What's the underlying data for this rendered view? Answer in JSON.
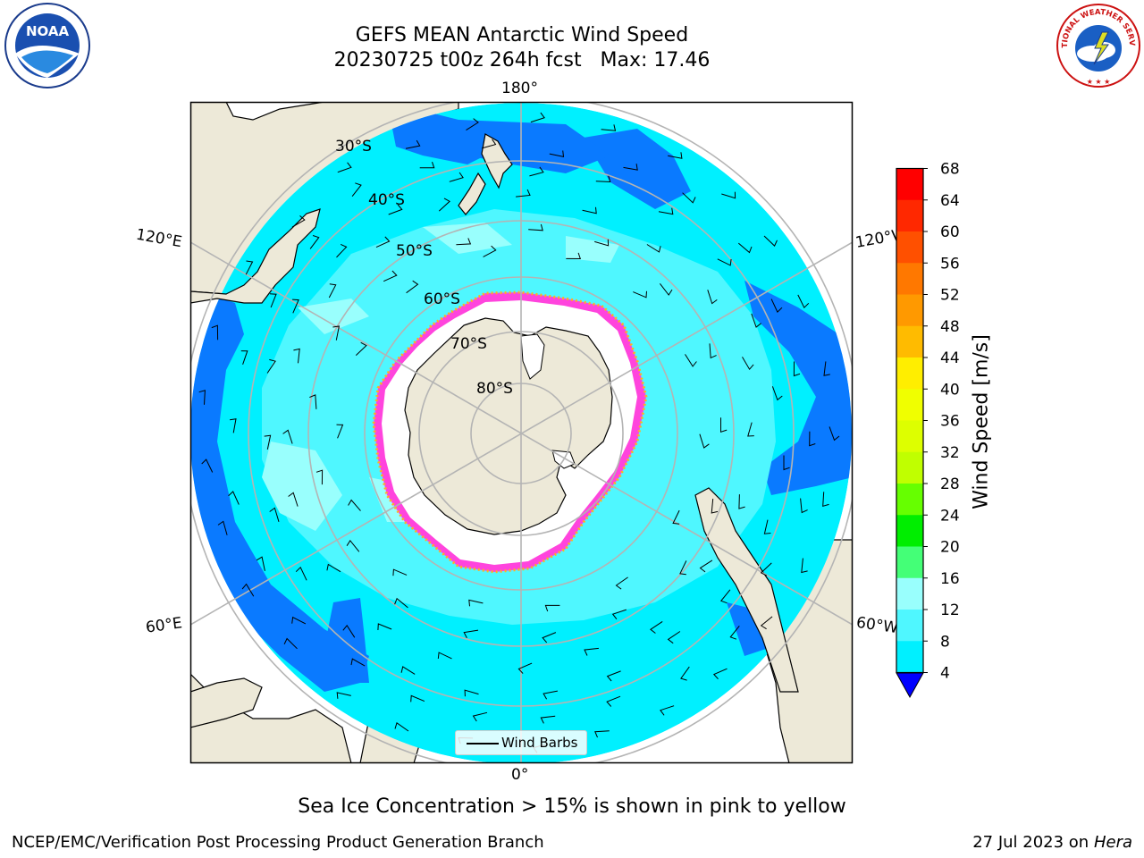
{
  "header": {
    "title_line1": "GEFS MEAN Antarctic Wind Speed",
    "title_line2": "20230725 t00z 264h fcst   Max: 17.46"
  },
  "logos": {
    "noaa": {
      "text": "NOAA",
      "ring_text": "NATIONAL OCEANIC AND ATMOSPHERIC ADMINISTRATION · U.S. DEPARTMENT OF COMMERCE",
      "icon": "noaa-logo"
    },
    "nws": {
      "ring_text": "NATIONAL WEATHER SERVICE",
      "icon": "nws-logo"
    }
  },
  "map": {
    "projection": "south-polar-stereographic",
    "lon_labels": {
      "top": "180°",
      "bottom": "0°",
      "upper_left": "120°E",
      "lower_left": "60°E",
      "upper_right": "120°W",
      "lower_right": "60°W"
    },
    "lat_labels": [
      "30°S",
      "40°S",
      "50°S",
      "60°S",
      "70°S",
      "80°S"
    ],
    "colors": {
      "land": "#ede9d8",
      "ocean_4_8": "#0a7aff",
      "ocean_8_12": "#00f0ff",
      "ocean_12_16": "#4ff7ff",
      "ocean_16_20": "#99fffd",
      "sea_ice": "#ff44dd",
      "sea_ice_edge": "#ffb020",
      "grid": "#b4b4b4"
    }
  },
  "colorbar": {
    "label": "Wind Speed [m/s]",
    "ticks": [
      "68",
      "64",
      "60",
      "56",
      "52",
      "48",
      "44",
      "40",
      "36",
      "32",
      "28",
      "24",
      "20",
      "16",
      "12",
      "8",
      "4"
    ],
    "colors": [
      "#ff0000",
      "#ff2800",
      "#ff5000",
      "#ff7800",
      "#ff9900",
      "#ffbb00",
      "#ffee00",
      "#f0ff00",
      "#ddff00",
      "#c0ff00",
      "#66ff00",
      "#00ee00",
      "#44ff77",
      "#99fffd",
      "#4ff7ff",
      "#00f0ff",
      "#0a7aff"
    ],
    "under_color": "#0000ff"
  },
  "legend": {
    "label": "Wind Barbs"
  },
  "note": "Sea Ice Concentration > 15% is shown in pink to yellow",
  "footer": {
    "left": "NCEP/EMC/Verification Post Processing Product Generation Branch",
    "date": "27 Jul 2023 on",
    "host": "Hera"
  }
}
